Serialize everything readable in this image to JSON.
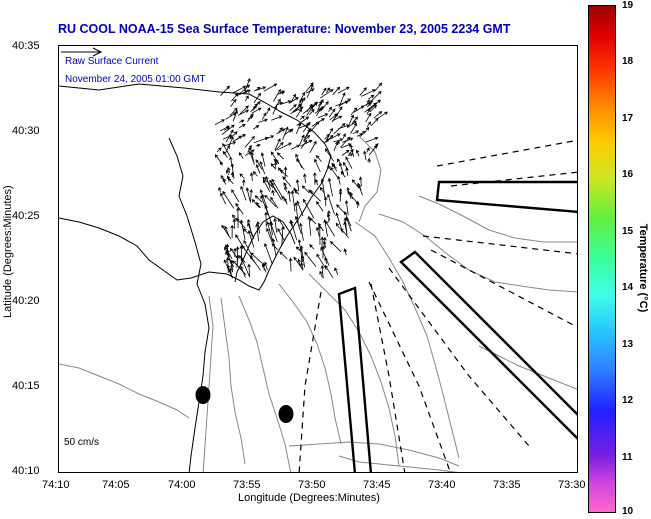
{
  "title": "RU COOL  NOAA-15  Sea Surface Temperature:  November 23, 2005 2234 GMT",
  "legend": {
    "line1": "Raw Surface Current",
    "line2": "November 24, 2005 01:00 GMT"
  },
  "scale": {
    "label": "50 cm/s"
  },
  "axes": {
    "xlabel": "Longitude (Degrees:Minutes)",
    "ylabel": "Latitude (Degrees:Minutes)",
    "xticks": [
      "74:10",
      "74:05",
      "74:00",
      "73:55",
      "73:50",
      "73:45",
      "73:40",
      "73:35",
      "73:30"
    ],
    "yticks": [
      "40:35",
      "40:30",
      "40:25",
      "40:20",
      "40:15",
      "40:10"
    ]
  },
  "colorbar": {
    "label": "Temperature (°C)",
    "ticks": [
      "19",
      "18",
      "17",
      "16",
      "15",
      "14",
      "13",
      "12",
      "11",
      "10"
    ],
    "range": [
      10,
      19
    ]
  },
  "colors": {
    "title": "#0000c8",
    "legend": "#0000c8",
    "contour": "#888888",
    "vectors": "#000000"
  }
}
